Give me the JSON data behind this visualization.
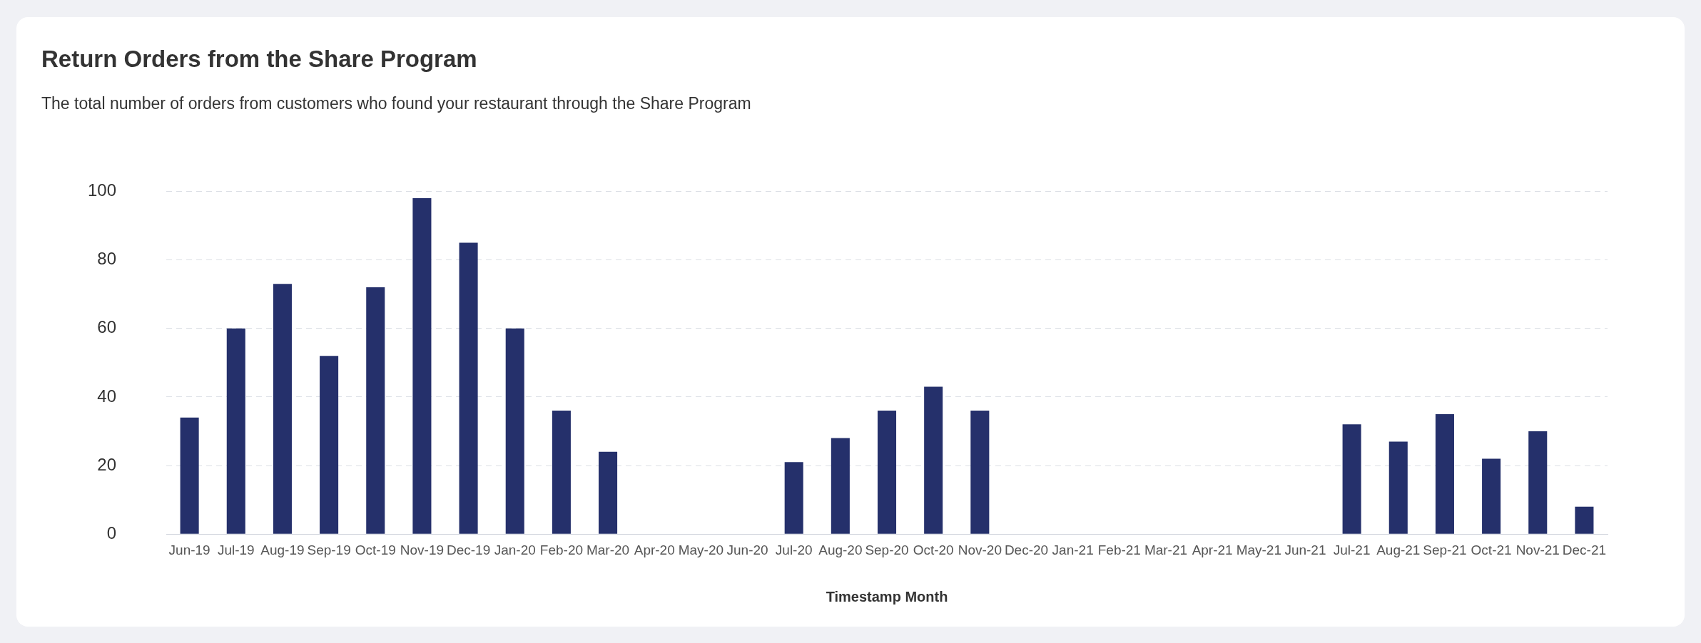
{
  "chart_data": {
    "type": "bar",
    "title": "Return Orders from the Share Program",
    "subtitle": "The total number of orders from customers who found your restaurant through the Share Program",
    "xlabel": "Timestamp Month",
    "categories": [
      "Jun-19",
      "Jul-19",
      "Aug-19",
      "Sep-19",
      "Oct-19",
      "Nov-19",
      "Dec-19",
      "Jan-20",
      "Feb-20",
      "Mar-20",
      "Apr-20",
      "May-20",
      "Jun-20",
      "Jul-20",
      "Aug-20",
      "Sep-20",
      "Oct-20",
      "Nov-20",
      "Dec-20",
      "Jan-21",
      "Feb-21",
      "Mar-21",
      "Apr-21",
      "May-21",
      "Jun-21",
      "Jul-21",
      "Aug-21",
      "Sep-21",
      "Oct-21",
      "Nov-21",
      "Dec-21"
    ],
    "values": [
      34,
      60,
      73,
      52,
      72,
      98,
      85,
      60,
      36,
      24,
      0,
      0,
      0,
      21,
      28,
      36,
      43,
      36,
      0,
      0,
      0,
      0,
      0,
      0,
      0,
      32,
      27,
      35,
      22,
      30,
      8
    ],
    "color": "#25306b",
    "ylim": [
      0,
      100
    ],
    "yticks": [
      0,
      20,
      40,
      60,
      80,
      100
    ],
    "grid": "y",
    "legend": false
  }
}
